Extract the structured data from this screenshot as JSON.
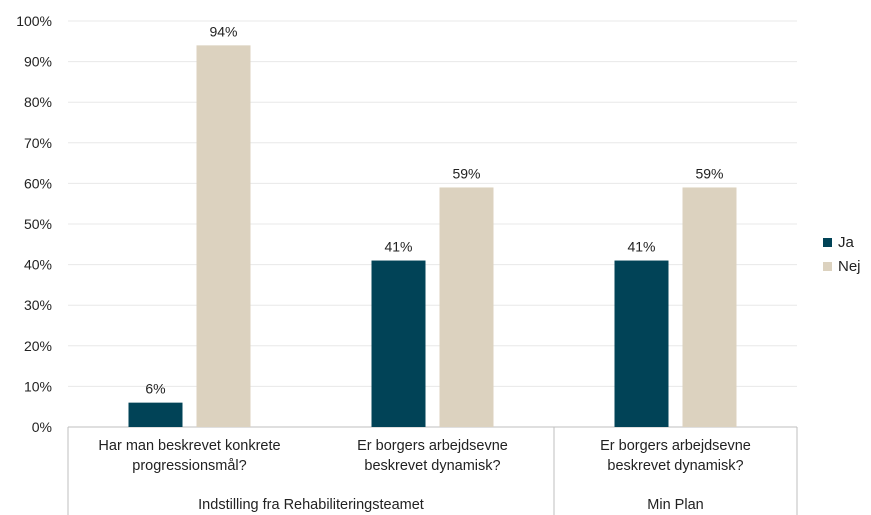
{
  "chart_data": {
    "type": "bar",
    "title": "",
    "xlabel": "",
    "ylabel": "",
    "ylim": [
      0,
      100
    ],
    "yticks": [
      "0%",
      "10%",
      "20%",
      "30%",
      "40%",
      "50%",
      "60%",
      "70%",
      "80%",
      "90%",
      "100%"
    ],
    "grid": true,
    "legend_position": "right",
    "categories": [
      [
        "Har man beskrevet konkrete",
        "progressionsmål?"
      ],
      [
        "Er borgers arbejdsevne",
        "beskrevet dynamisk?"
      ],
      [
        "Er borgers arbejdsevne",
        "beskrevet dynamisk?"
      ]
    ],
    "groups": [
      {
        "label": "Indstilling fra Rehabiliteringsteamet",
        "categories": [
          0,
          1
        ]
      },
      {
        "label": "Min Plan",
        "categories": [
          2
        ]
      }
    ],
    "series": [
      {
        "name": "Ja",
        "color": "#014357",
        "values": [
          6,
          41,
          41
        ],
        "labels": [
          "6%",
          "41%",
          "41%"
        ]
      },
      {
        "name": "Nej",
        "color": "#dcd2bf",
        "values": [
          94,
          59,
          59
        ],
        "labels": [
          "94%",
          "59%",
          "59%"
        ]
      }
    ]
  }
}
